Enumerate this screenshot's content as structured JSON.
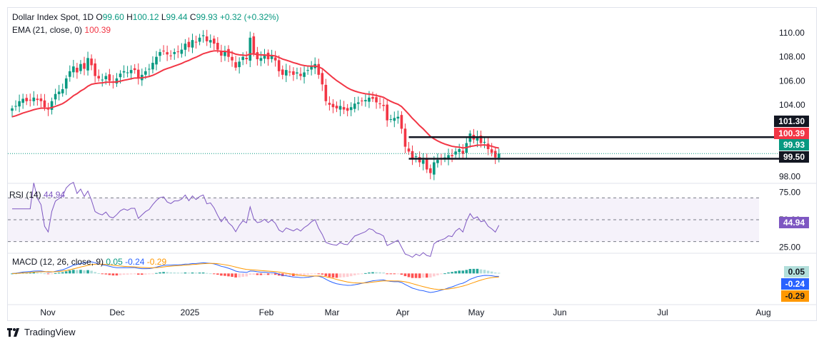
{
  "legend": {
    "symbol": "Dollar Index Spot, 1D",
    "o_label": "O",
    "o": "99.60",
    "h_label": "H",
    "h": "100.12",
    "l_label": "L",
    "l": "99.44",
    "c_label": "C",
    "c": "99.93",
    "chg": "+0.32 (+0.32%)",
    "ema": "EMA (21, close, 0)",
    "ema_val": "100.39",
    "rsi": "RSI (14)",
    "rsi_val": "44.94",
    "macd": "MACD (12, 26, close, 9)",
    "macd_hist": "0.05",
    "macd_line": "-0.24",
    "macd_sig": "-0.29"
  },
  "colors": {
    "up": "#089981",
    "down": "#f23645",
    "ema": "#f23645",
    "rsi": "#7e57c2",
    "macd": "#2962ff",
    "signal": "#ff9800",
    "level": "#131722"
  },
  "badges": {
    "r1": "101.30",
    "ema": "100.39",
    "last": "99.93",
    "s1": "99.50",
    "rsi": "44.94",
    "hist": "0.05",
    "macd": "-0.24",
    "sig": "-0.29"
  },
  "footer": {
    "brand": "TradingView",
    "logo_icon": "tradingview-logo-icon"
  },
  "chart_data": [
    {
      "type": "candlestick",
      "title": "Dollar Index Spot, 1D",
      "y_ticks": [
        "110.00",
        "108.00",
        "106.00",
        "104.00",
        "98.00"
      ],
      "ylim": [
        97.8,
        110.6
      ],
      "x_ticks": [
        "Nov",
        "Dec",
        "2025",
        "Feb",
        "Mar",
        "Apr",
        "May",
        "Jun",
        "Jul",
        "Aug"
      ],
      "levels": [
        101.3,
        99.5
      ],
      "close_approx": [
        103.7,
        103.9,
        104.3,
        104.5,
        104.3,
        104.4,
        104.6,
        104.4,
        104.3,
        103.8,
        103.6,
        104.3,
        104.9,
        105.1,
        105.3,
        106.2,
        106.8,
        107.2,
        106.7,
        107.4,
        107.0,
        107.9,
        107.3,
        106.4,
        106.2,
        106.1,
        106.4,
        106.0,
        105.9,
        106.2,
        106.6,
        106.8,
        106.7,
        106.9,
        106.9,
        106.2,
        106.5,
        106.8,
        107.0,
        107.5,
        108.0,
        108.4,
        108.5,
        108.2,
        108.1,
        108.4,
        108.4,
        108.6,
        109.1,
        108.8,
        109.4,
        109.2,
        109.6,
        109.8,
        109.3,
        109.4,
        109.1,
        108.6,
        108.1,
        108.5,
        108.0,
        107.7,
        107.1,
        107.6,
        108.0,
        107.8,
        109.6,
        108.3,
        107.8,
        107.9,
        108.2,
        107.8,
        108.1,
        107.7,
        106.8,
        106.5,
        106.9,
        106.7,
        106.5,
        106.7,
        106.4,
        106.7,
        106.9,
        107.2,
        107.4,
        106.5,
        105.7,
        104.3,
        104.0,
        103.8,
        103.7,
        103.9,
        103.6,
        103.5,
        103.8,
        104.1,
        104.2,
        104.3,
        104.4,
        104.6,
        104.5,
        104.2,
        104.1,
        103.9,
        102.7,
        102.8,
        102.9,
        103.0,
        102.0,
        100.5,
        100.1,
        99.5,
        99.7,
        99.2,
        99.4,
        98.6,
        98.3,
        99.2,
        99.4,
        99.5,
        99.6,
        99.8,
        99.7,
        100.1,
        100.3,
        99.9,
        100.8,
        101.6,
        101.1,
        101.3,
        100.8,
        100.9,
        100.3,
        100.0,
        99.6,
        99.93
      ],
      "ema_approx_start": 103.0,
      "ema_last": 100.39
    },
    {
      "type": "line",
      "title": "RSI (14)",
      "y_ticks": [
        "75.00",
        "50.00",
        "25.00"
      ],
      "ylim": [
        20,
        82
      ],
      "bands": [
        70,
        50,
        30
      ],
      "last": 44.94
    },
    {
      "type": "bar+line",
      "title": "MACD (12, 26, close, 9)",
      "series": [
        {
          "name": "hist",
          "last": 0.05
        },
        {
          "name": "macd",
          "last": -0.24
        },
        {
          "name": "signal",
          "last": -0.29
        }
      ],
      "ylim": [
        -2.5,
        1.6
      ]
    }
  ]
}
